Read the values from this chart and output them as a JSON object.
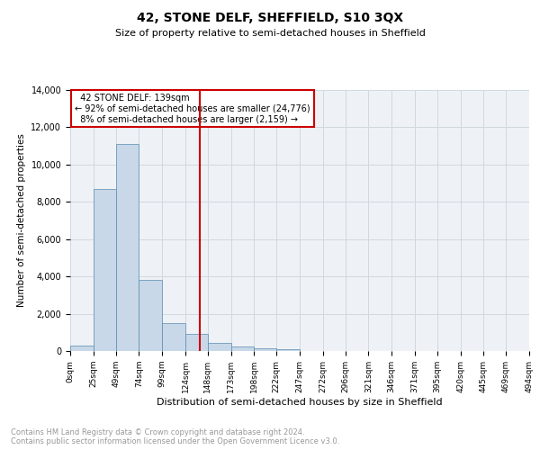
{
  "title": "42, STONE DELF, SHEFFIELD, S10 3QX",
  "subtitle": "Size of property relative to semi-detached houses in Sheffield",
  "xlabel": "Distribution of semi-detached houses by size in Sheffield",
  "ylabel": "Number of semi-detached properties",
  "property_size": 139,
  "property_label": "42 STONE DELF: 139sqm",
  "pct_smaller": 92,
  "count_smaller": "24,776",
  "pct_larger": 8,
  "count_larger": "2,159",
  "bin_edges": [
    0,
    25,
    49,
    74,
    99,
    124,
    148,
    173,
    198,
    222,
    247,
    272,
    296,
    321,
    346,
    371,
    395,
    420,
    445,
    469,
    494
  ],
  "bar_heights": [
    310,
    8700,
    11100,
    3800,
    1500,
    900,
    420,
    240,
    130,
    110,
    0,
    0,
    0,
    0,
    0,
    0,
    0,
    0,
    0,
    0
  ],
  "tick_labels": [
    "0sqm",
    "25sqm",
    "49sqm",
    "74sqm",
    "99sqm",
    "124sqm",
    "148sqm",
    "173sqm",
    "198sqm",
    "222sqm",
    "247sqm",
    "272sqm",
    "296sqm",
    "321sqm",
    "346sqm",
    "371sqm",
    "395sqm",
    "420sqm",
    "445sqm",
    "469sqm",
    "494sqm"
  ],
  "bar_color": "#c8d8e8",
  "bar_edge_color": "#5a8ab0",
  "vline_x": 139,
  "vline_color": "#cc0000",
  "ylim": [
    0,
    14000
  ],
  "yticks": [
    0,
    2000,
    4000,
    6000,
    8000,
    10000,
    12000,
    14000
  ],
  "grid_color": "#d0d8e0",
  "bg_color": "#eef2f6",
  "footnote": "Contains HM Land Registry data © Crown copyright and database right 2024.\nContains public sector information licensed under the Open Government Licence v3.0.",
  "footnote_color": "#999999",
  "title_fontsize": 10,
  "subtitle_fontsize": 8,
  "xlabel_fontsize": 8,
  "ylabel_fontsize": 7.5,
  "tick_fontsize": 6.5,
  "ytick_fontsize": 7,
  "annot_fontsize": 7,
  "footnote_fontsize": 6
}
